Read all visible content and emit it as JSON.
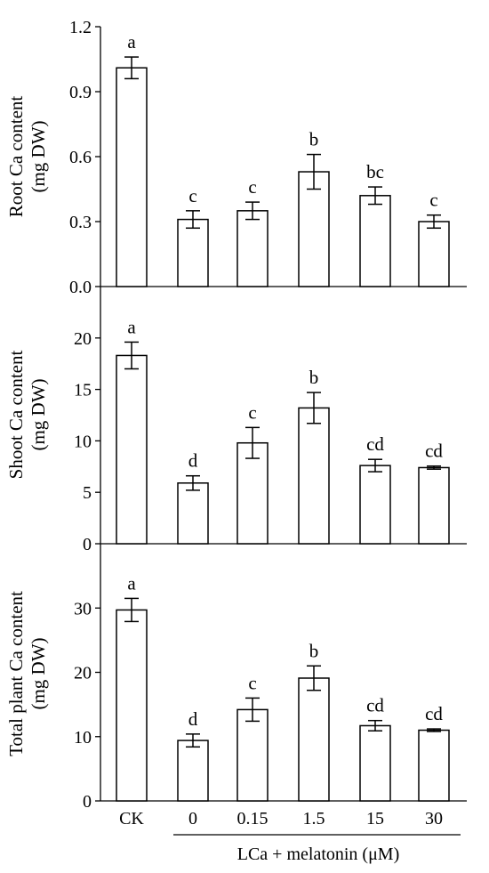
{
  "chart_data": [
    {
      "type": "bar",
      "panel": "root",
      "ylabel_line1": "Root Ca content",
      "ylabel_line2": "(mg DW)",
      "ylim": [
        0,
        1.2
      ],
      "yticks": [
        "0.0",
        "0.3",
        "0.6",
        "0.9",
        "1.2"
      ],
      "ytick_values": [
        0,
        0.3,
        0.6,
        0.9,
        1.2
      ],
      "categories": [
        "CK",
        "0",
        "0.15",
        "1.5",
        "15",
        "30"
      ],
      "values": [
        1.01,
        0.31,
        0.35,
        0.53,
        0.42,
        0.3
      ],
      "errors": [
        0.05,
        0.04,
        0.04,
        0.08,
        0.04,
        0.03
      ],
      "letters": [
        "a",
        "c",
        "c",
        "b",
        "bc",
        "c"
      ]
    },
    {
      "type": "bar",
      "panel": "shoot",
      "ylabel_line1": "Shoot Ca content",
      "ylabel_line2": "(mg DW)",
      "ylim": [
        0,
        25
      ],
      "yticks": [
        "0",
        "5",
        "10",
        "15",
        "20"
      ],
      "ytick_values": [
        0,
        5,
        10,
        15,
        20
      ],
      "categories": [
        "CK",
        "0",
        "0.15",
        "1.5",
        "15",
        "30"
      ],
      "values": [
        18.3,
        5.9,
        9.8,
        13.2,
        7.6,
        7.4
      ],
      "errors": [
        1.3,
        0.7,
        1.5,
        1.5,
        0.6,
        0.15
      ],
      "letters": [
        "a",
        "d",
        "c",
        "b",
        "cd",
        "cd"
      ]
    },
    {
      "type": "bar",
      "panel": "total",
      "ylabel_line1": "Total plant Ca content",
      "ylabel_line2": "(mg DW)",
      "ylim": [
        0,
        40
      ],
      "yticks": [
        "0",
        "10",
        "20",
        "30"
      ],
      "ytick_values": [
        0,
        10,
        20,
        30
      ],
      "categories": [
        "CK",
        "0",
        "0.15",
        "1.5",
        "15",
        "30"
      ],
      "values": [
        29.7,
        9.4,
        14.2,
        19.1,
        11.7,
        11.0
      ],
      "errors": [
        1.8,
        1.0,
        1.8,
        1.9,
        0.8,
        0.2
      ],
      "letters": [
        "a",
        "d",
        "c",
        "b",
        "cd",
        "cd"
      ]
    }
  ],
  "xaxis": {
    "categories": [
      "CK",
      "0",
      "0.15",
      "1.5",
      "15",
      "30"
    ],
    "group_label": "LCa + melatonin (μM)"
  }
}
